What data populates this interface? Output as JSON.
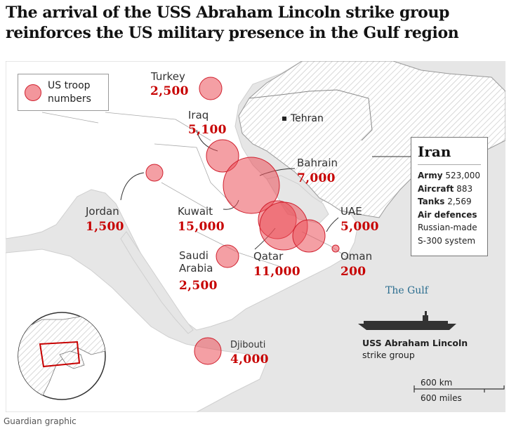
{
  "title": "The arrival of the USS Abraham Lincoln strike group reinforces the US military presence in the Gulf region",
  "legend": {
    "label": "US troop numbers"
  },
  "countries": [
    {
      "name": "Turkey",
      "troops": "2,500"
    },
    {
      "name": "Iraq",
      "troops": "5,100"
    },
    {
      "name": "Bahrain",
      "troops": "7,000"
    },
    {
      "name": "Jordan",
      "troops": "1,500"
    },
    {
      "name": "Kuwait",
      "troops": "15,000"
    },
    {
      "name": "UAE",
      "troops": "5,000"
    },
    {
      "name": "Saudi Arabia",
      "troops": "2,500"
    },
    {
      "name": "Qatar",
      "troops": "11,000"
    },
    {
      "name": "Oman",
      "troops": "200"
    },
    {
      "name": "Djibouti",
      "troops": "4,000"
    }
  ],
  "tehran": "Tehran",
  "iran": {
    "name": "Iran",
    "rows": [
      {
        "label": "Army",
        "value": "523,000"
      },
      {
        "label": "Aircraft",
        "value": "883"
      },
      {
        "label": "Tanks",
        "value": "2,569"
      },
      {
        "label": "Air defences",
        "value": ""
      },
      {
        "label": "",
        "value": "Russian-made"
      },
      {
        "label": "",
        "value": "S-300 system"
      }
    ]
  },
  "gulf_label": "The Gulf",
  "ship": {
    "name": "USS Abraham Lincoln",
    "sub": "strike group"
  },
  "scale": {
    "km": "600 km",
    "miles": "600 miles"
  },
  "footer": "Guardian graphic",
  "colors": {
    "bubble_fill": "#eb505a",
    "bubble_stroke": "#d0202e",
    "number": "#c70000",
    "land": "#ffffff",
    "sea": "#e6e6e6",
    "gulf_text": "#2b6d8f"
  },
  "icons": [
    "us-troop-bubble-icon",
    "city-marker-icon",
    "aircraft-carrier-icon",
    "globe-locator-icon"
  ]
}
